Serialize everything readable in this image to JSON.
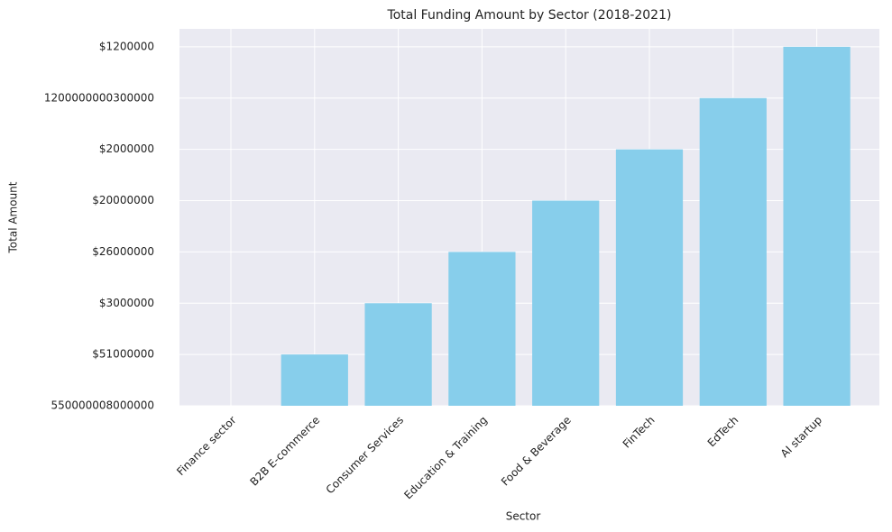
{
  "chart_data": {
    "type": "bar",
    "title": "Total Funding Amount by Sector (2018-2021)",
    "x_label": "Sector",
    "y_label": "Total Amount",
    "categories": [
      "Finance sector",
      "B2B E-commerce",
      "Consumer Services",
      "Education & Training",
      "Food & Beverage",
      "FinTech",
      "EdTech",
      "AI startup"
    ],
    "values": [
      0,
      1,
      2,
      3,
      4,
      5,
      6,
      7
    ],
    "color": "#87ceeb",
    "ylim": [
      0,
      7.35
    ],
    "yticks": [
      {
        "value": 0,
        "label": "550000008000000"
      },
      {
        "value": 1,
        "label": "$51000000"
      },
      {
        "value": 2,
        "label": "$3000000"
      },
      {
        "value": 3,
        "label": "$26000000"
      },
      {
        "value": 4,
        "label": "$20000000"
      },
      {
        "value": 5,
        "label": "$2000000"
      },
      {
        "value": 6,
        "label": "1200000000300000"
      },
      {
        "value": 7,
        "label": "$1200000"
      }
    ],
    "grid": true
  }
}
